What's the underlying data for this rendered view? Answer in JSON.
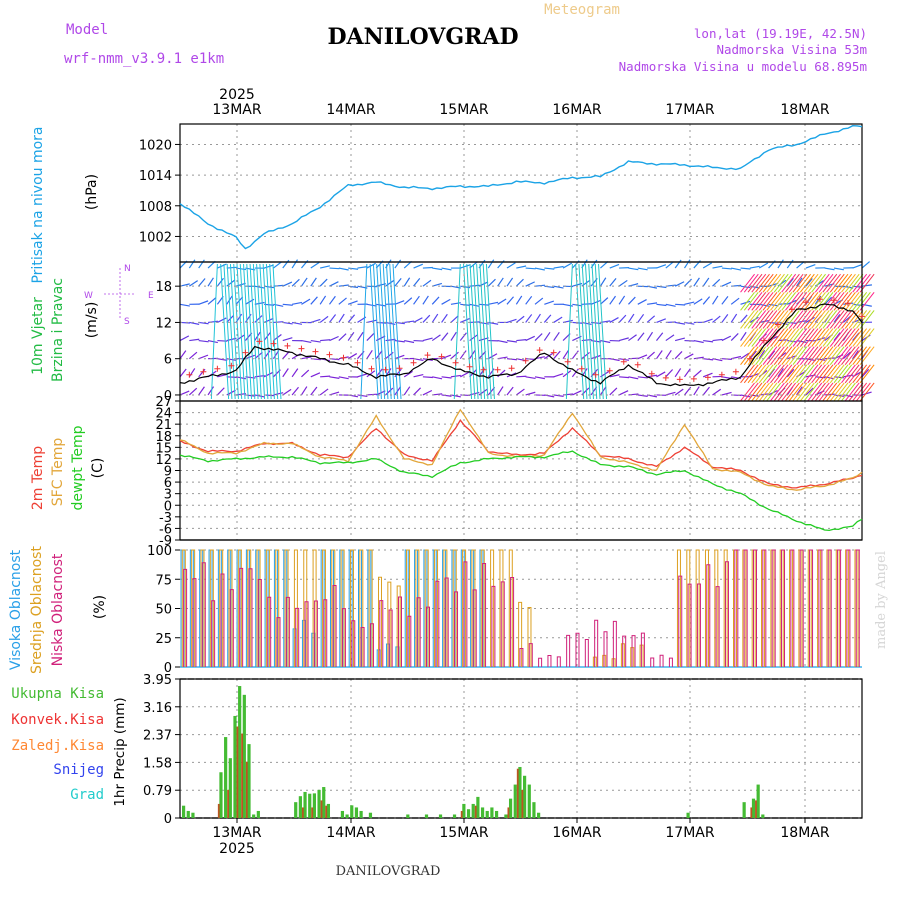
{
  "header": {
    "model_label": "Model",
    "model_name": "wrf-nmm_v3.9.1 e1km",
    "chart_type_label": "Meteogram",
    "station": "DANILOVGRAD",
    "coords": "lon,lat (19.19E, 42.5N)",
    "elevation": "Nadmorska Visina 53m",
    "model_elevation": "Nadmorska Visina u modelu 68.895m",
    "watermark": "made by Angel",
    "footer_station": "DANILOVGRAD"
  },
  "time_axis": {
    "year": "2025",
    "labels": [
      "13MAR",
      "14MAR",
      "15MAR",
      "16MAR",
      "17MAR",
      "18MAR"
    ]
  },
  "colors": {
    "pressure": "#1ba3e6",
    "temp2m": "#ee4035",
    "sfc_temp": "#e2a63a",
    "dewpt": "#22cc22",
    "cloud_high": "#2aa0e8",
    "cloud_mid": "#dca020",
    "cloud_low": "#d0207a",
    "precip_total": "#44bb33",
    "precip_conv": "#ee3333",
    "precip_frozen": "#ff8833",
    "snow": "#3344ee",
    "graupel": "#22cccc",
    "purple": "#9a3fe0"
  },
  "panels": {
    "pressure": {
      "left_labels": [
        "Pritisak na nivou mora"
      ],
      "unit": "(hPa)"
    },
    "wind": {
      "left_labels": [
        "10m Vjetar",
        "Brzina i Pravac"
      ],
      "unit": "(m/s)",
      "compass": [
        "N",
        "E",
        "S",
        "W"
      ]
    },
    "temperature": {
      "left_labels": [
        "2m Temp",
        "SFC Temp",
        "dewpt Temp"
      ],
      "unit": "(C)"
    },
    "clouds": {
      "left_labels": [
        "Visoka Oblacnost",
        "Srednja Oblacnost",
        "Niska Oblacnost"
      ],
      "unit": "(%)"
    },
    "precip": {
      "left_labels": [
        "Ukupna Kisa",
        "Konvek.Kisa",
        "Zaledj.Kisa",
        "Snijeg",
        "Grad"
      ],
      "unit": "1hr Precip (mm)"
    }
  },
  "chart_data": [
    {
      "type": "line",
      "title": "",
      "ylabel": "(hPa)",
      "yticks": [
        "1002",
        "1008",
        "1014",
        "1020"
      ],
      "ylim": [
        997,
        1024
      ],
      "series": [
        {
          "name": "Pritisak na nivou mora",
          "x_hours": [
            0,
            6,
            12,
            14,
            18,
            24,
            30,
            36,
            42,
            48,
            54,
            60,
            66,
            72,
            78,
            84,
            90,
            96,
            102,
            108,
            114,
            120,
            126,
            132,
            138,
            144,
            146
          ],
          "values": [
            1008.5,
            1004.5,
            1001.8,
            999.6,
            1002.5,
            1004.5,
            1007.8,
            1012,
            1012.6,
            1011.6,
            1011.4,
            1011.8,
            1011.8,
            1012.7,
            1012.5,
            1013.5,
            1013.7,
            1016.6,
            1016.2,
            1016,
            1015.5,
            1015.2,
            1019,
            1020,
            1022,
            1023.5,
            1023.5
          ]
        }
      ]
    },
    {
      "type": "line",
      "ylabel": "(m/s)",
      "yticks": [
        "0",
        "6",
        "12",
        "18"
      ],
      "ylim": [
        -1,
        22
      ],
      "series": [
        {
          "name": "10m Vjetar",
          "x_hours": [
            0,
            6,
            12,
            16,
            20,
            24,
            30,
            36,
            42,
            48,
            54,
            60,
            66,
            72,
            78,
            84,
            90,
            96,
            102,
            108,
            114,
            120,
            126,
            132,
            138,
            144,
            146
          ],
          "values": [
            2,
            3,
            4,
            8,
            7.5,
            7,
            6,
            5,
            3,
            3.5,
            6,
            4,
            3,
            3.5,
            7,
            4,
            2,
            5,
            2,
            1.5,
            2,
            3,
            9,
            14,
            15,
            14,
            12
          ]
        }
      ]
    },
    {
      "type": "line",
      "ylabel": "(C)",
      "yticks": [
        "-9",
        "-6",
        "-3",
        "0",
        "3",
        "6",
        "9",
        "12",
        "15",
        "18",
        "21",
        "24",
        "27"
      ],
      "ylim": [
        -9,
        27
      ],
      "series": [
        {
          "name": "2m Temp",
          "x_hours": [
            0,
            6,
            12,
            18,
            24,
            30,
            36,
            42,
            48,
            54,
            60,
            66,
            72,
            78,
            84,
            90,
            96,
            102,
            108,
            114,
            120,
            126,
            132,
            138,
            144,
            146
          ],
          "values": [
            16.5,
            14,
            14,
            16,
            16,
            13,
            12.5,
            20,
            13,
            11.5,
            22,
            14,
            13,
            13.5,
            20,
            13,
            12,
            10,
            15,
            10,
            9,
            5.5,
            4.5,
            5.5,
            7,
            8
          ]
        },
        {
          "name": "SFC Temp",
          "x_hours": [
            0,
            6,
            12,
            18,
            24,
            30,
            36,
            42,
            48,
            54,
            60,
            66,
            72,
            78,
            84,
            90,
            96,
            102,
            108,
            114,
            120,
            126,
            132,
            138,
            144,
            146
          ],
          "values": [
            17,
            13.5,
            13.5,
            16,
            16,
            12.5,
            11.5,
            23,
            12,
            10.5,
            25,
            13.5,
            12.5,
            13,
            24,
            12.5,
            11,
            9,
            21,
            9.5,
            8.5,
            5,
            4,
            5,
            7,
            8.5
          ]
        },
        {
          "name": "dewpt Temp",
          "x_hours": [
            0,
            6,
            12,
            18,
            24,
            30,
            36,
            42,
            48,
            54,
            60,
            66,
            72,
            78,
            84,
            90,
            96,
            102,
            108,
            114,
            120,
            126,
            132,
            138,
            144,
            146
          ],
          "values": [
            13,
            11.5,
            12,
            12.5,
            12.5,
            11,
            11,
            12,
            8.5,
            7.5,
            11,
            12,
            12.5,
            12.5,
            14,
            10.5,
            10,
            8,
            9,
            5.5,
            3,
            -1,
            -4,
            -6.5,
            -5.5,
            -3.5
          ]
        }
      ]
    },
    {
      "type": "bar",
      "ylabel": "(%)",
      "yticks": [
        "0",
        "25",
        "50",
        "75",
        "100"
      ],
      "ylim": [
        0,
        100
      ],
      "series": [
        {
          "name": "Visoka Oblacnost",
          "values": [
            100,
            100,
            100,
            100,
            40,
            100,
            100,
            20,
            100,
            100,
            100,
            0,
            0,
            0,
            0,
            0,
            0,
            0,
            0,
            0,
            0,
            0,
            0,
            0,
            0
          ]
        },
        {
          "name": "Srednja Oblacnost",
          "values": [
            100,
            100,
            100,
            100,
            100,
            100,
            100,
            80,
            100,
            100,
            100,
            100,
            60,
            0,
            0,
            10,
            20,
            0,
            100,
            100,
            100,
            100,
            100,
            100,
            100
          ]
        },
        {
          "name": "Niska Oblacnost",
          "values": [
            90,
            80,
            90,
            60,
            60,
            70,
            40,
            60,
            60,
            80,
            90,
            80,
            20,
            10,
            30,
            40,
            30,
            10,
            80,
            90,
            100,
            100,
            100,
            100,
            100
          ]
        }
      ]
    },
    {
      "type": "bar",
      "ylabel": "1hr Precip (mm)",
      "yticks": [
        "0",
        "0.79",
        "1.58",
        "2.37",
        "3.16",
        "3.95"
      ],
      "ylim": [
        0,
        3.95
      ],
      "series": [
        {
          "name": "Ukupna Kisa",
          "x_hours": [
            0,
            1,
            2,
            8,
            9,
            10,
            11,
            12,
            13,
            14,
            15,
            16,
            24,
            25,
            26,
            27,
            28,
            29,
            30,
            31,
            34,
            35,
            36,
            37,
            38,
            40,
            48,
            52,
            55,
            58,
            60,
            61,
            62,
            63,
            64,
            65,
            66,
            67,
            69,
            70,
            71,
            72,
            73,
            74,
            75,
            76,
            108,
            120,
            122,
            123,
            124
          ],
          "values": [
            0.35,
            0.2,
            0.15,
            1.3,
            2.3,
            1.7,
            2.9,
            3.75,
            3.5,
            2.1,
            0.1,
            0.2,
            0.45,
            0.62,
            0.74,
            0.69,
            0.7,
            0.8,
            0.88,
            0.4,
            0.2,
            0.1,
            0.36,
            0.3,
            0.2,
            0.15,
            0.1,
            0.1,
            0.1,
            0.1,
            0.4,
            0.25,
            0.4,
            0.6,
            0.3,
            0.2,
            0.3,
            0.2,
            0.1,
            0.55,
            0.95,
            1.45,
            1.2,
            0.95,
            0.45,
            0.15,
            0.15,
            0.45,
            0.55,
            0.95,
            0.1
          ]
        },
        {
          "name": "Konvek.Kisa",
          "x_hours": [
            8,
            10,
            12,
            13,
            14,
            26,
            28,
            30,
            31,
            60,
            63,
            70,
            72,
            73,
            122,
            123
          ],
          "values": [
            0.4,
            0.8,
            2.6,
            2.4,
            1.6,
            0.3,
            0.3,
            0.5,
            0.35,
            0.2,
            0.35,
            0.3,
            1.4,
            0.8,
            0.3,
            0.5
          ]
        }
      ]
    }
  ]
}
